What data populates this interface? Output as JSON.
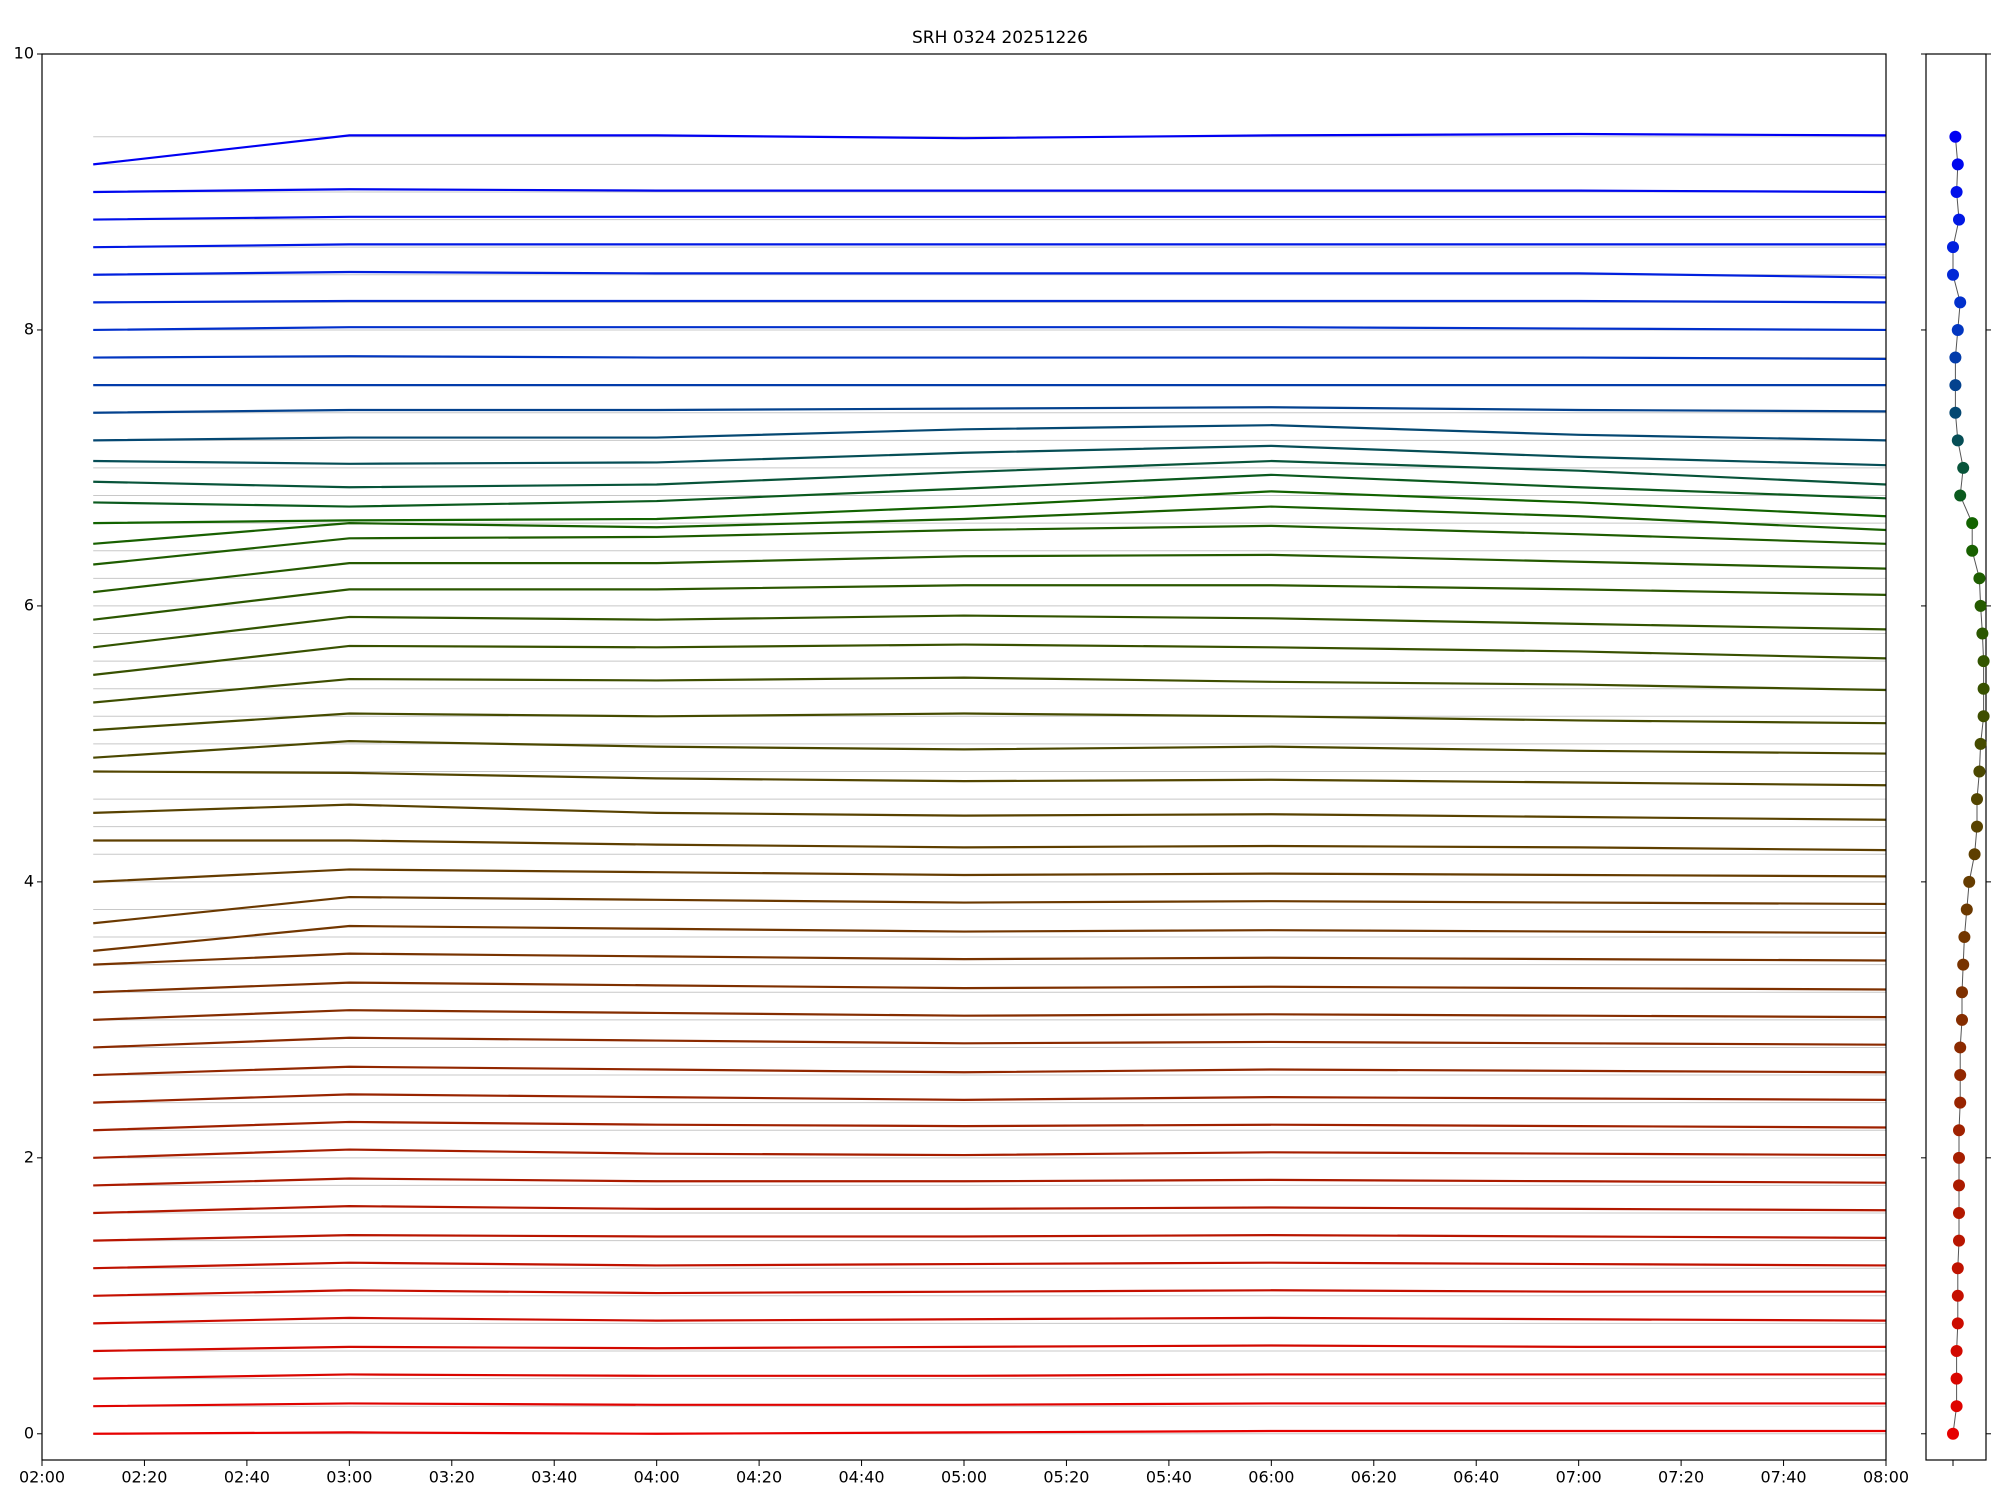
{
  "chart_data": [
    {
      "type": "line",
      "title": "SRH 0324 20251226",
      "x": [
        "02:10",
        "03:00",
        "04:00",
        "05:00",
        "06:00",
        "07:00",
        "08:00"
      ],
      "xlim": [
        "02:00",
        "08:00"
      ],
      "xticks": [
        "02:00",
        "02:20",
        "02:40",
        "03:00",
        "03:20",
        "03:40",
        "04:00",
        "04:20",
        "04:40",
        "05:00",
        "05:20",
        "05:40",
        "06:00",
        "06:20",
        "06:40",
        "07:00",
        "07:20",
        "07:40",
        "08:00"
      ],
      "ylim": [
        -0.19,
        10
      ],
      "yticks": [
        0,
        2,
        4,
        6,
        8,
        10
      ],
      "series": [
        {
          "color": "#e60000",
          "values": [
            0.0,
            0.01,
            0.0,
            0.01,
            0.02,
            0.02,
            0.02
          ]
        },
        {
          "color": "#df0300",
          "values": [
            0.2,
            0.22,
            0.21,
            0.21,
            0.22,
            0.22,
            0.22
          ]
        },
        {
          "color": "#d90600",
          "values": [
            0.4,
            0.43,
            0.42,
            0.42,
            0.43,
            0.43,
            0.43
          ]
        },
        {
          "color": "#d20900",
          "values": [
            0.6,
            0.63,
            0.62,
            0.63,
            0.64,
            0.63,
            0.63
          ]
        },
        {
          "color": "#cc0c00",
          "values": [
            0.8,
            0.84,
            0.82,
            0.83,
            0.84,
            0.83,
            0.82
          ]
        },
        {
          "color": "#c50f00",
          "values": [
            1.0,
            1.04,
            1.02,
            1.03,
            1.04,
            1.03,
            1.03
          ]
        },
        {
          "color": "#bf1200",
          "values": [
            1.2,
            1.24,
            1.22,
            1.23,
            1.24,
            1.23,
            1.22
          ]
        },
        {
          "color": "#b81500",
          "values": [
            1.4,
            1.44,
            1.43,
            1.43,
            1.44,
            1.43,
            1.42
          ]
        },
        {
          "color": "#b21800",
          "values": [
            1.6,
            1.65,
            1.63,
            1.63,
            1.64,
            1.63,
            1.62
          ]
        },
        {
          "color": "#ab1b00",
          "values": [
            1.8,
            1.85,
            1.83,
            1.83,
            1.84,
            1.83,
            1.82
          ]
        },
        {
          "color": "#a51e00",
          "values": [
            2.0,
            2.06,
            2.03,
            2.02,
            2.04,
            2.03,
            2.02
          ]
        },
        {
          "color": "#9f2100",
          "values": [
            2.2,
            2.26,
            2.24,
            2.23,
            2.24,
            2.23,
            2.22
          ]
        },
        {
          "color": "#982400",
          "values": [
            2.4,
            2.46,
            2.44,
            2.42,
            2.44,
            2.43,
            2.42
          ]
        },
        {
          "color": "#922700",
          "values": [
            2.6,
            2.66,
            2.64,
            2.62,
            2.64,
            2.63,
            2.62
          ]
        },
        {
          "color": "#8b2a00",
          "values": [
            2.8,
            2.87,
            2.85,
            2.83,
            2.84,
            2.83,
            2.82
          ]
        },
        {
          "color": "#852d00",
          "values": [
            3.0,
            3.07,
            3.05,
            3.03,
            3.04,
            3.03,
            3.02
          ]
        },
        {
          "color": "#7e3000",
          "values": [
            3.2,
            3.27,
            3.25,
            3.23,
            3.24,
            3.23,
            3.22
          ]
        },
        {
          "color": "#783300",
          "values": [
            3.4,
            3.48,
            3.46,
            3.44,
            3.45,
            3.44,
            3.43
          ]
        },
        {
          "color": "#723600",
          "values": [
            3.5,
            3.68,
            3.66,
            3.64,
            3.65,
            3.64,
            3.63
          ]
        },
        {
          "color": "#6b3900",
          "values": [
            3.7,
            3.89,
            3.87,
            3.85,
            3.86,
            3.85,
            3.84
          ]
        },
        {
          "color": "#653c00",
          "values": [
            4.0,
            4.09,
            4.07,
            4.05,
            4.06,
            4.05,
            4.04
          ]
        },
        {
          "color": "#5e3f00",
          "values": [
            4.3,
            4.3,
            4.27,
            4.25,
            4.26,
            4.25,
            4.23
          ]
        },
        {
          "color": "#584200",
          "values": [
            4.5,
            4.56,
            4.5,
            4.48,
            4.49,
            4.47,
            4.45
          ]
        },
        {
          "color": "#524500",
          "values": [
            4.8,
            4.79,
            4.75,
            4.73,
            4.74,
            4.72,
            4.7
          ]
        },
        {
          "color": "#4b4800",
          "values": [
            4.9,
            5.02,
            4.98,
            4.96,
            4.98,
            4.95,
            4.93
          ]
        },
        {
          "color": "#454b00",
          "values": [
            5.1,
            5.22,
            5.2,
            5.22,
            5.2,
            5.17,
            5.15
          ]
        },
        {
          "color": "#3e4e00",
          "values": [
            5.3,
            5.47,
            5.46,
            5.48,
            5.45,
            5.43,
            5.39
          ]
        },
        {
          "color": "#385100",
          "values": [
            5.5,
            5.71,
            5.7,
            5.72,
            5.7,
            5.67,
            5.62
          ]
        },
        {
          "color": "#325400",
          "values": [
            5.7,
            5.92,
            5.9,
            5.93,
            5.91,
            5.87,
            5.83
          ]
        },
        {
          "color": "#2b5700",
          "values": [
            5.9,
            6.12,
            6.12,
            6.15,
            6.15,
            6.12,
            6.08
          ]
        },
        {
          "color": "#255a00",
          "values": [
            6.1,
            6.31,
            6.31,
            6.36,
            6.37,
            6.32,
            6.27
          ]
        },
        {
          "color": "#1e5d00",
          "values": [
            6.3,
            6.49,
            6.5,
            6.55,
            6.58,
            6.52,
            6.45
          ]
        },
        {
          "color": "#186000",
          "values": [
            6.45,
            6.6,
            6.57,
            6.63,
            6.72,
            6.65,
            6.55
          ]
        },
        {
          "color": "#126300",
          "values": [
            6.6,
            6.62,
            6.63,
            6.72,
            6.83,
            6.75,
            6.65
          ]
        },
        {
          "color": "#0b5a1e",
          "values": [
            6.75,
            6.72,
            6.76,
            6.85,
            6.95,
            6.86,
            6.78
          ]
        },
        {
          "color": "#08543a",
          "values": [
            6.9,
            6.86,
            6.88,
            6.97,
            7.05,
            6.98,
            6.88
          ]
        },
        {
          "color": "#064e56",
          "values": [
            7.05,
            7.03,
            7.04,
            7.11,
            7.16,
            7.08,
            7.02
          ]
        },
        {
          "color": "#054872",
          "values": [
            7.2,
            7.22,
            7.22,
            7.28,
            7.31,
            7.24,
            7.2
          ]
        },
        {
          "color": "#04428e",
          "values": [
            7.4,
            7.42,
            7.42,
            7.43,
            7.44,
            7.42,
            7.41
          ]
        },
        {
          "color": "#033caa",
          "values": [
            7.6,
            7.6,
            7.6,
            7.6,
            7.6,
            7.6,
            7.6
          ]
        },
        {
          "color": "#0236c0",
          "values": [
            7.8,
            7.81,
            7.8,
            7.8,
            7.8,
            7.8,
            7.79
          ]
        },
        {
          "color": "#0230cc",
          "values": [
            8.0,
            8.02,
            8.02,
            8.02,
            8.02,
            8.01,
            8.0
          ]
        },
        {
          "color": "#0228d6",
          "values": [
            8.2,
            8.21,
            8.21,
            8.21,
            8.21,
            8.21,
            8.2
          ]
        },
        {
          "color": "#0120de",
          "values": [
            8.4,
            8.42,
            8.41,
            8.41,
            8.41,
            8.41,
            8.38
          ]
        },
        {
          "color": "#0118e4",
          "values": [
            8.6,
            8.62,
            8.62,
            8.62,
            8.62,
            8.62,
            8.62
          ]
        },
        {
          "color": "#0110ea",
          "values": [
            8.8,
            8.82,
            8.82,
            8.82,
            8.82,
            8.82,
            8.82
          ]
        },
        {
          "color": "#0008ee",
          "values": [
            9.0,
            9.02,
            9.01,
            9.01,
            9.01,
            9.01,
            9.0
          ]
        },
        {
          "color": "#0000f2",
          "values": [
            9.2,
            9.41,
            9.41,
            9.39,
            9.41,
            9.42,
            9.41
          ]
        }
      ]
    },
    {
      "type": "scatter",
      "x": [
        0.45,
        0.51,
        0.51,
        0.51,
        0.53,
        0.53,
        0.53,
        0.55,
        0.55,
        0.55,
        0.55,
        0.55,
        0.57,
        0.57,
        0.57,
        0.6,
        0.6,
        0.62,
        0.64,
        0.68,
        0.72,
        0.81,
        0.85,
        0.85,
        0.89,
        0.91,
        0.96,
        0.96,
        0.96,
        0.94,
        0.91,
        0.89,
        0.77,
        0.77,
        0.57,
        0.62,
        0.53,
        0.49,
        0.49,
        0.49,
        0.53,
        0.57,
        0.45,
        0.45,
        0.55,
        0.51,
        0.53,
        0.49
      ],
      "y": [
        0,
        0.2,
        0.4,
        0.6,
        0.8,
        1.0,
        1.2,
        1.4,
        1.6,
        1.8,
        2.0,
        2.2,
        2.4,
        2.6,
        2.8,
        3.0,
        3.2,
        3.4,
        3.6,
        3.8,
        4.0,
        4.2,
        4.4,
        4.6,
        4.8,
        5.0,
        5.2,
        5.4,
        5.6,
        5.8,
        6.0,
        6.2,
        6.4,
        6.6,
        6.8,
        7.0,
        7.2,
        7.4,
        7.6,
        7.8,
        8.0,
        8.2,
        8.4,
        8.6,
        8.8,
        9.0,
        9.2,
        9.4
      ],
      "xlim": [
        0,
        1
      ],
      "xticks": [
        0.45
      ],
      "ylim": [
        -0.19,
        10
      ]
    }
  ]
}
